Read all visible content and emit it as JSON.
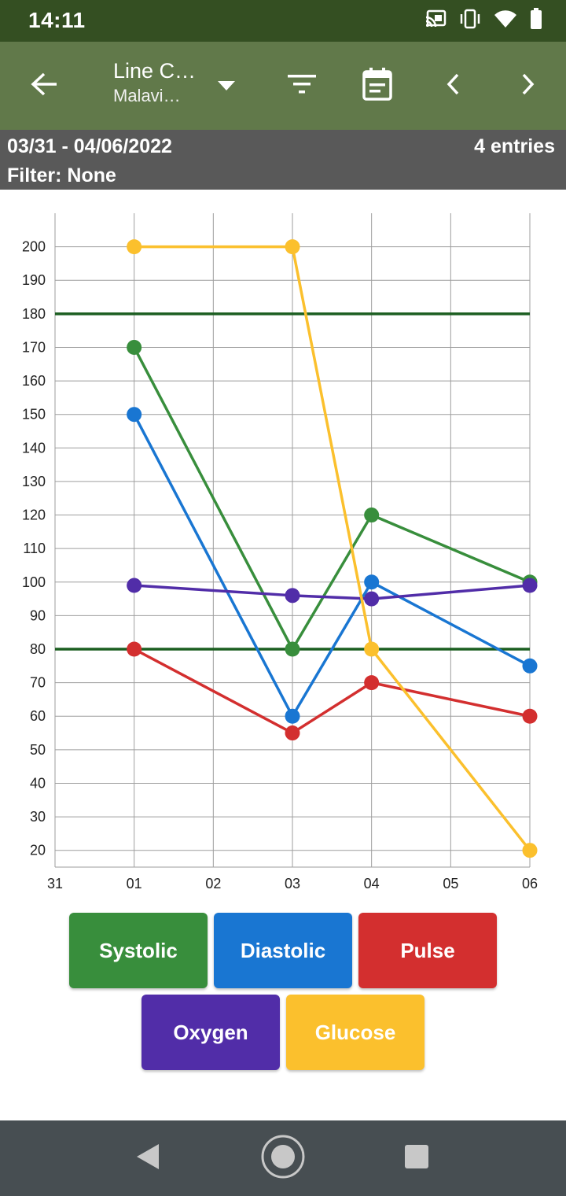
{
  "status_bar": {
    "time": "14:11",
    "icons": [
      "cast-icon",
      "vibrate-icon",
      "wifi-icon",
      "battery-icon"
    ]
  },
  "app_bar": {
    "title": "Line C…",
    "subtitle": "Malavi…",
    "icons": [
      "back-arrow-icon",
      "dropdown-caret-icon",
      "filter-icon",
      "calendar-icon",
      "chevron-left-icon",
      "chevron-right-icon"
    ]
  },
  "info_bar": {
    "date_range": "03/31 - 04/06/2022",
    "entries": "4 entries",
    "filter": "Filter: None"
  },
  "chart_data": {
    "type": "line",
    "x": [
      "31",
      "01",
      "02",
      "03",
      "04",
      "05",
      "06"
    ],
    "ylim": [
      15,
      210
    ],
    "yticks": [
      20,
      30,
      40,
      50,
      60,
      70,
      80,
      90,
      100,
      110,
      120,
      130,
      140,
      150,
      160,
      170,
      180,
      190,
      200
    ],
    "reference_lines": [
      180,
      80
    ],
    "grid": true,
    "series": [
      {
        "name": "Systolic",
        "color": "#388e3c",
        "points": [
          [
            "01",
            170
          ],
          [
            "03",
            80
          ],
          [
            "04",
            120
          ],
          [
            "06",
            100
          ]
        ]
      },
      {
        "name": "Diastolic",
        "color": "#1976d2",
        "points": [
          [
            "01",
            150
          ],
          [
            "03",
            60
          ],
          [
            "04",
            100
          ],
          [
            "06",
            75
          ]
        ]
      },
      {
        "name": "Pulse",
        "color": "#d32f2f",
        "points": [
          [
            "01",
            80
          ],
          [
            "03",
            55
          ],
          [
            "04",
            70
          ],
          [
            "06",
            60
          ]
        ]
      },
      {
        "name": "Oxygen",
        "color": "#512da8",
        "points": [
          [
            "01",
            99
          ],
          [
            "03",
            96
          ],
          [
            "04",
            95
          ],
          [
            "06",
            99
          ]
        ]
      },
      {
        "name": "Glucose",
        "color": "#fbc02d",
        "points": [
          [
            "01",
            200
          ],
          [
            "03",
            200
          ],
          [
            "04",
            80
          ],
          [
            "06",
            20
          ]
        ]
      }
    ],
    "reference_color": "#1b5e20"
  },
  "legend": [
    {
      "label": "Systolic",
      "color": "#388e3c"
    },
    {
      "label": "Diastolic",
      "color": "#1976d2"
    },
    {
      "label": "Pulse",
      "color": "#d32f2f"
    },
    {
      "label": "Oxygen",
      "color": "#512da8"
    },
    {
      "label": "Glucose",
      "color": "#fbc02d"
    }
  ],
  "nav_bar": {
    "icons": [
      "nav-back-icon",
      "nav-home-icon",
      "nav-recents-icon"
    ]
  }
}
